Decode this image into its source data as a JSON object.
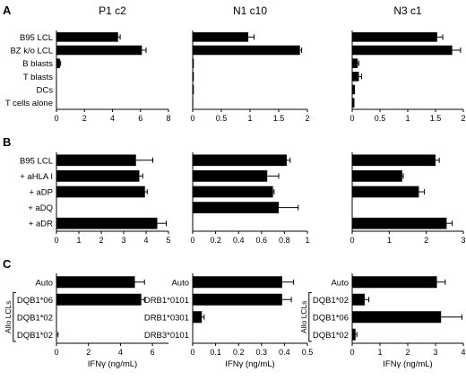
{
  "panel_letters": [
    "A",
    "B",
    "C"
  ],
  "chart_data": [
    {
      "type": "bar",
      "row": "A",
      "col": 0,
      "orientation": "horizontal",
      "title": "P1 c2",
      "categories": [
        "B95 LCL",
        "BZ k/o LCL",
        "B blasts",
        "T blasts",
        "DCs",
        "T cells alone"
      ],
      "values": [
        4.4,
        6.1,
        0.25,
        0.0,
        0.0,
        0.0
      ],
      "errors": [
        0.15,
        0.3,
        0.05,
        0,
        0,
        0
      ],
      "xlim": [
        0,
        8
      ],
      "xticks": [
        "0",
        "2",
        "4",
        "6",
        "8"
      ],
      "tick_values": [
        0,
        2,
        4,
        6,
        8
      ],
      "xlabel": "",
      "show_categories": true
    },
    {
      "type": "bar",
      "row": "A",
      "col": 1,
      "orientation": "horizontal",
      "title": "N1 c10",
      "categories": [
        "B95 LCL",
        "BZ k/o LCL",
        "B blasts",
        "T blasts",
        "DCs",
        "T cells alone"
      ],
      "values": [
        0.97,
        1.87,
        0.02,
        0.02,
        0.02,
        0.01
      ],
      "errors": [
        0.1,
        0.03,
        0,
        0,
        0,
        0
      ],
      "xlim": [
        0,
        2
      ],
      "xticks": [
        "0",
        "0.5",
        "1",
        "1.5",
        "2"
      ],
      "tick_values": [
        0,
        0.5,
        1,
        1.5,
        2
      ],
      "xlabel": "",
      "show_categories": false
    },
    {
      "type": "bar",
      "row": "A",
      "col": 2,
      "orientation": "horizontal",
      "title": "N3 c1",
      "categories": [
        "B95 LCL",
        "BZ k/o LCL",
        "B blasts",
        "T blasts",
        "DCs",
        "T cells alone"
      ],
      "values": [
        1.53,
        1.8,
        0.1,
        0.12,
        0.05,
        0.04
      ],
      "errors": [
        0.1,
        0.15,
        0.02,
        0.05,
        0,
        0
      ],
      "xlim": [
        0,
        2
      ],
      "xticks": [
        "0",
        "0.5",
        "1",
        "1.5",
        "2"
      ],
      "tick_values": [
        0,
        0.5,
        1,
        1.5,
        2
      ],
      "xlabel": "",
      "show_categories": false
    },
    {
      "type": "bar",
      "row": "B",
      "col": 0,
      "orientation": "horizontal",
      "title": "",
      "categories": [
        "B95 LCL",
        "+ aHLA I",
        "+ aDP",
        "+ aDQ",
        "+ aDR"
      ],
      "values": [
        3.55,
        3.7,
        3.95,
        0.0,
        4.5
      ],
      "errors": [
        0.75,
        0.15,
        0.1,
        0,
        0.4
      ],
      "xlim": [
        0,
        5
      ],
      "xticks": [
        "0",
        "1",
        "2",
        "3",
        "4",
        "5"
      ],
      "tick_values": [
        0,
        1,
        2,
        3,
        4,
        5
      ],
      "xlabel": "",
      "show_categories": true
    },
    {
      "type": "bar",
      "row": "B",
      "col": 1,
      "orientation": "horizontal",
      "title": "",
      "categories": [
        "B95 LCL",
        "+ aHLA I",
        "+ aDP",
        "+ aDQ",
        "+ aDR"
      ],
      "values": [
        0.82,
        0.65,
        0.7,
        0.75,
        0.0
      ],
      "errors": [
        0.03,
        0.1,
        0.01,
        0.17,
        0
      ],
      "xlim": [
        0,
        1
      ],
      "xticks": [
        "0",
        "0.2",
        "0.4",
        "0.6",
        "0.8",
        "1"
      ],
      "tick_values": [
        0,
        0.2,
        0.4,
        0.6,
        0.8,
        1
      ],
      "xlabel": "",
      "show_categories": false
    },
    {
      "type": "bar",
      "row": "B",
      "col": 2,
      "orientation": "horizontal",
      "title": "",
      "categories": [
        "B95 LCL",
        "+ aHLA I",
        "+ aDP",
        "+ aDQ",
        "+ aDR"
      ],
      "values": [
        2.25,
        1.35,
        1.8,
        0.0,
        2.55
      ],
      "errors": [
        0.1,
        0.03,
        0.15,
        0,
        0.15
      ],
      "xlim": [
        0,
        3
      ],
      "xticks": [
        "0",
        "1",
        "2",
        "3"
      ],
      "tick_values": [
        0,
        1,
        2,
        3
      ],
      "xlabel": "",
      "show_categories": false
    },
    {
      "type": "bar",
      "row": "C",
      "col": 0,
      "orientation": "horizontal",
      "title": "",
      "categories": [
        "Auto",
        "DQB1*06",
        "DQB1*02",
        "DQB1*02"
      ],
      "values": [
        4.9,
        5.3,
        0.0,
        0.0
      ],
      "errors": [
        0.6,
        0.2,
        0,
        0.1
      ],
      "xlim": [
        0,
        7
      ],
      "xticks": [
        "0",
        "2",
        "4",
        "6"
      ],
      "tick_values": [
        0,
        2,
        4,
        6
      ],
      "xlabel": "IFNγ (ng/mL)",
      "show_categories": true,
      "bracket_label": "Allo LCLs"
    },
    {
      "type": "bar",
      "row": "C",
      "col": 1,
      "orientation": "horizontal",
      "title": "",
      "categories": [
        "Auto",
        "DRB1*0101",
        "DRB1*0301",
        "DRB3*0101"
      ],
      "values": [
        0.39,
        0.39,
        0.04,
        0.0
      ],
      "errors": [
        0.05,
        0.04,
        0.01,
        0
      ],
      "xlim": [
        0,
        0.5
      ],
      "xticks": [
        "0",
        "0.1",
        "0.2",
        "0.3",
        "0.4",
        "0.5"
      ],
      "tick_values": [
        0,
        0.1,
        0.2,
        0.3,
        0.4,
        0.5
      ],
      "xlabel": "IFNγ (ng/mL)",
      "show_categories": true
    },
    {
      "type": "bar",
      "row": "C",
      "col": 2,
      "orientation": "horizontal",
      "title": "",
      "categories": [
        "Auto",
        "DQB1*02",
        "DQB1*06",
        "DQB1*02"
      ],
      "values": [
        3.05,
        0.45,
        3.2,
        0.12
      ],
      "errors": [
        0.3,
        0.15,
        0.75,
        0.05
      ],
      "xlim": [
        0,
        4
      ],
      "xticks": [
        "0",
        "1",
        "2",
        "3",
        "4"
      ],
      "tick_values": [
        0,
        1,
        2,
        3,
        4
      ],
      "xlabel": "IFNγ (ng/mL)",
      "show_categories": true,
      "bracket_label": "Allo LCLs"
    }
  ]
}
